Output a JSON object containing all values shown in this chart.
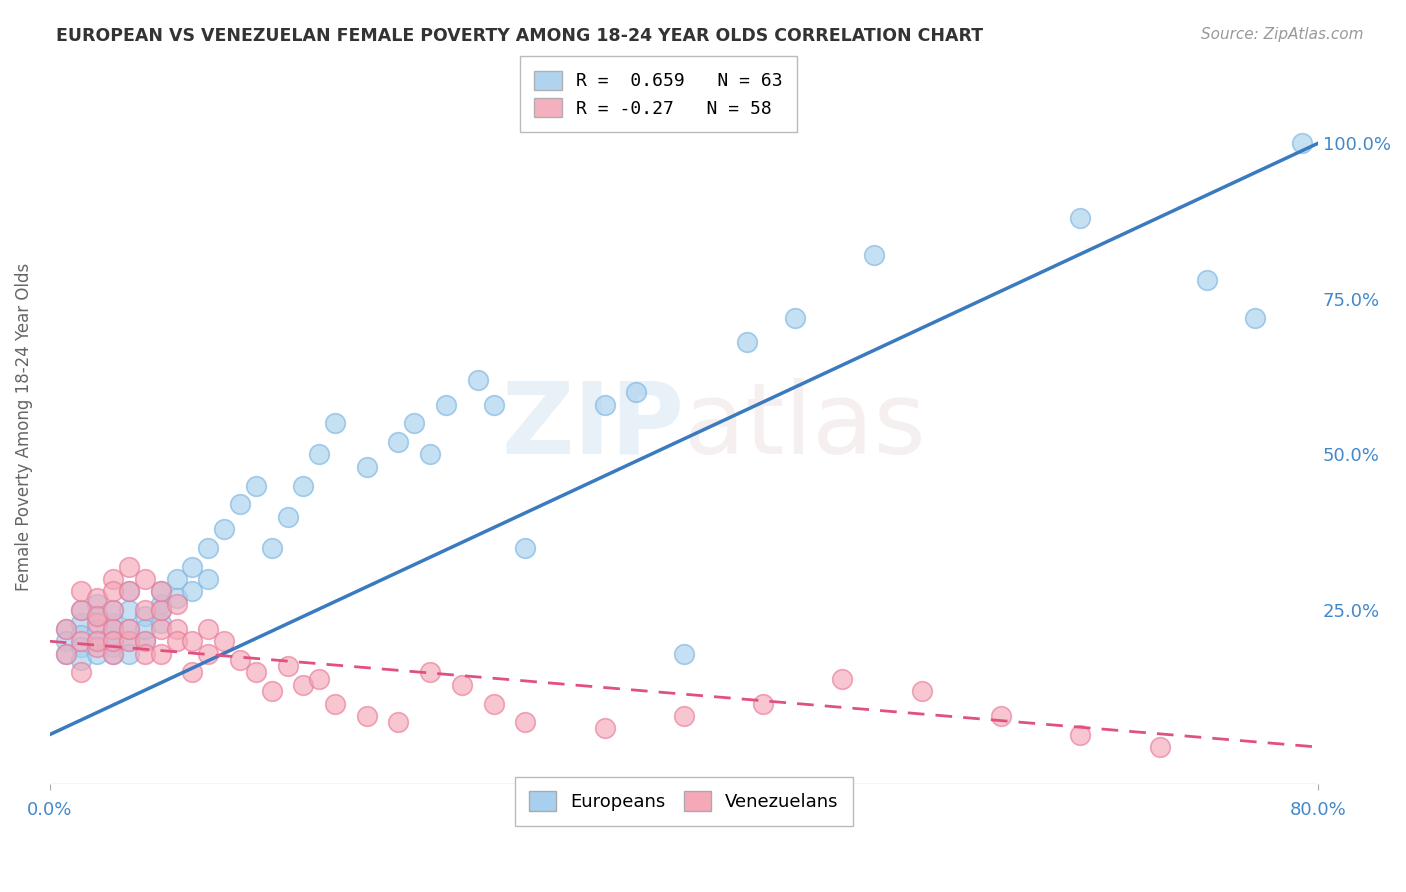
{
  "title": "EUROPEAN VS VENEZUELAN FEMALE POVERTY AMONG 18-24 YEAR OLDS CORRELATION CHART",
  "source": "Source: ZipAtlas.com",
  "ylabel": "Female Poverty Among 18-24 Year Olds",
  "xlim": [
    0.0,
    0.8
  ],
  "ylim": [
    -0.03,
    1.12
  ],
  "yticks_right": [
    0.25,
    0.5,
    0.75,
    1.0
  ],
  "ytick_right_labels": [
    "25.0%",
    "50.0%",
    "75.0%",
    "100.0%"
  ],
  "european_R": 0.659,
  "european_N": 63,
  "venezuelan_R": -0.27,
  "venezuelan_N": 58,
  "blue_color": "#a8d0ee",
  "pink_color": "#f4a8b8",
  "blue_edge_color": "#7ab5e0",
  "pink_edge_color": "#e87a9a",
  "blue_line_color": "#3a7abf",
  "pink_line_color": "#e05080",
  "watermark": "ZIPatlas",
  "eu_line_x0": 0.0,
  "eu_line_y0": 0.05,
  "eu_line_x1": 0.8,
  "eu_line_y1": 1.0,
  "ven_line_x0": 0.0,
  "ven_line_y0": 0.2,
  "ven_line_x1": 0.8,
  "ven_line_y1": 0.03,
  "european_x": [
    0.01,
    0.01,
    0.01,
    0.02,
    0.02,
    0.02,
    0.02,
    0.02,
    0.03,
    0.03,
    0.03,
    0.03,
    0.03,
    0.04,
    0.04,
    0.04,
    0.04,
    0.04,
    0.04,
    0.05,
    0.05,
    0.05,
    0.05,
    0.05,
    0.06,
    0.06,
    0.06,
    0.07,
    0.07,
    0.07,
    0.07,
    0.08,
    0.08,
    0.09,
    0.09,
    0.1,
    0.1,
    0.11,
    0.12,
    0.13,
    0.14,
    0.15,
    0.16,
    0.17,
    0.18,
    0.2,
    0.22,
    0.23,
    0.24,
    0.25,
    0.27,
    0.28,
    0.3,
    0.35,
    0.37,
    0.4,
    0.44,
    0.47,
    0.52,
    0.65,
    0.73,
    0.76,
    0.79
  ],
  "european_y": [
    0.22,
    0.2,
    0.18,
    0.23,
    0.21,
    0.19,
    0.17,
    0.25,
    0.24,
    0.2,
    0.18,
    0.22,
    0.26,
    0.23,
    0.19,
    0.22,
    0.25,
    0.2,
    0.18,
    0.25,
    0.22,
    0.2,
    0.18,
    0.28,
    0.24,
    0.2,
    0.22,
    0.26,
    0.28,
    0.23,
    0.25,
    0.3,
    0.27,
    0.32,
    0.28,
    0.35,
    0.3,
    0.38,
    0.42,
    0.45,
    0.35,
    0.4,
    0.45,
    0.5,
    0.55,
    0.48,
    0.52,
    0.55,
    0.5,
    0.58,
    0.62,
    0.58,
    0.35,
    0.58,
    0.6,
    0.18,
    0.68,
    0.72,
    0.82,
    0.88,
    0.78,
    0.72,
    1.0
  ],
  "venezuelan_x": [
    0.01,
    0.01,
    0.02,
    0.02,
    0.02,
    0.02,
    0.03,
    0.03,
    0.03,
    0.03,
    0.03,
    0.04,
    0.04,
    0.04,
    0.04,
    0.04,
    0.04,
    0.05,
    0.05,
    0.05,
    0.05,
    0.06,
    0.06,
    0.06,
    0.06,
    0.07,
    0.07,
    0.07,
    0.07,
    0.08,
    0.08,
    0.08,
    0.09,
    0.09,
    0.1,
    0.1,
    0.11,
    0.12,
    0.13,
    0.14,
    0.15,
    0.16,
    0.17,
    0.18,
    0.2,
    0.22,
    0.24,
    0.26,
    0.28,
    0.3,
    0.35,
    0.4,
    0.45,
    0.5,
    0.55,
    0.6,
    0.65,
    0.7
  ],
  "venezuelan_y": [
    0.22,
    0.18,
    0.25,
    0.2,
    0.28,
    0.15,
    0.23,
    0.27,
    0.19,
    0.24,
    0.2,
    0.3,
    0.22,
    0.18,
    0.25,
    0.2,
    0.28,
    0.32,
    0.2,
    0.22,
    0.28,
    0.25,
    0.2,
    0.3,
    0.18,
    0.22,
    0.25,
    0.18,
    0.28,
    0.22,
    0.26,
    0.2,
    0.2,
    0.15,
    0.18,
    0.22,
    0.2,
    0.17,
    0.15,
    0.12,
    0.16,
    0.13,
    0.14,
    0.1,
    0.08,
    0.07,
    0.15,
    0.13,
    0.1,
    0.07,
    0.06,
    0.08,
    0.1,
    0.14,
    0.12,
    0.08,
    0.05,
    0.03
  ]
}
